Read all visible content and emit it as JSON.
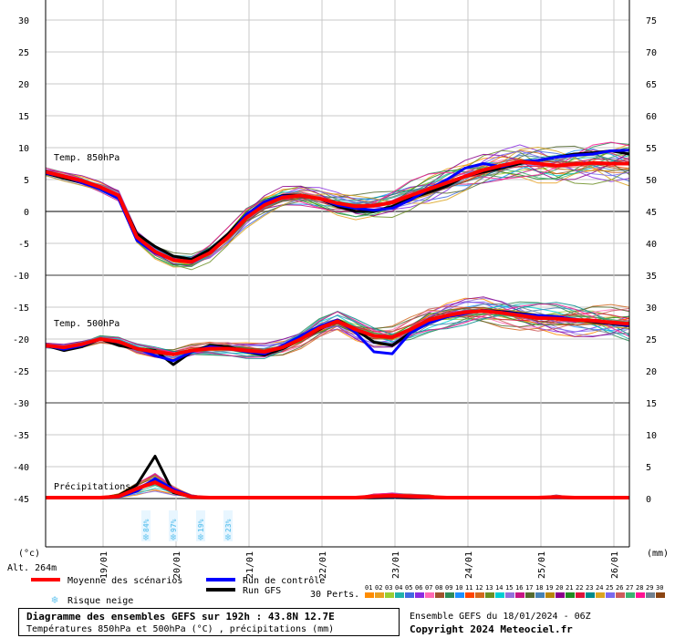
{
  "chart_data": {
    "type": "line",
    "left_axis": {
      "unit": "(°c)",
      "ticks": [
        30,
        25,
        20,
        15,
        10,
        5,
        0,
        -5,
        -10,
        -15,
        -20,
        -25,
        -30,
        -35,
        -40,
        -45
      ]
    },
    "right_axis": {
      "unit": "(mm)",
      "ticks": [
        75,
        70,
        65,
        60,
        55,
        50,
        45,
        40,
        35,
        30,
        25,
        20,
        15,
        10,
        5,
        0
      ]
    },
    "x_ticks": [
      "19/01",
      "20/01",
      "21/01",
      "22/01",
      "23/01",
      "24/01",
      "25/01",
      "26/01"
    ],
    "altitude": "Alt. 264m",
    "panels": [
      {
        "label": "Temp. 850hPa",
        "level": "850hPa"
      },
      {
        "label": "Temp. 500hPa",
        "level": "500hPa"
      },
      {
        "label": "Précipitations",
        "level": "precip"
      }
    ],
    "time_hours": [
      0,
      6,
      12,
      18,
      24,
      30,
      36,
      42,
      48,
      54,
      60,
      66,
      72,
      78,
      84,
      90,
      96,
      102,
      108,
      114,
      120,
      126,
      132,
      138,
      144,
      150,
      156,
      162,
      168,
      174,
      180,
      186,
      192
    ],
    "series": [
      {
        "name": "Moyenne des scénarios",
        "color": "#ff0000",
        "t850": [
          6.2,
          5.5,
          4.8,
          3.8,
          2.5,
          -4.0,
          -6.3,
          -7.6,
          -7.9,
          -6.5,
          -4.0,
          -1.0,
          1.0,
          2.2,
          2.5,
          2.0,
          1.3,
          0.8,
          0.9,
          1.4,
          2.5,
          3.5,
          4.5,
          5.5,
          6.5,
          7.2,
          7.8,
          7.5,
          7.2,
          7.4,
          7.6,
          7.5,
          7.5
        ],
        "t500": [
          -21.0,
          -21.3,
          -20.8,
          -20.0,
          -20.4,
          -21.5,
          -22.0,
          -22.4,
          -21.8,
          -21.5,
          -21.5,
          -21.8,
          -22.0,
          -21.3,
          -20.0,
          -18.3,
          -17.2,
          -18.5,
          -19.5,
          -19.7,
          -18.5,
          -17.0,
          -16.3,
          -15.8,
          -15.6,
          -15.9,
          -16.3,
          -16.7,
          -16.8,
          -17.0,
          -17.1,
          -17.4,
          -17.6
        ],
        "precip": [
          0,
          0,
          0,
          0,
          0.2,
          1.4,
          2.4,
          1.0,
          0.1,
          0,
          0,
          0,
          0,
          0,
          0,
          0,
          0,
          0,
          0.2,
          0.3,
          0.2,
          0.1,
          0,
          0,
          0,
          0,
          0,
          0,
          0.1,
          0,
          0,
          0,
          0
        ]
      },
      {
        "name": "Run de contrôle",
        "color": "#0000ff",
        "t850": [
          6.0,
          5.5,
          4.5,
          3.5,
          2.0,
          -4.5,
          -6.5,
          -7.5,
          -8.0,
          -6.5,
          -4.0,
          -0.5,
          1.5,
          2.4,
          2.4,
          2.0,
          1.0,
          0.5,
          0.2,
          0.5,
          1.8,
          3.5,
          5.0,
          6.8,
          7.5,
          7.0,
          7.8,
          8.0,
          8.5,
          8.8,
          9.0,
          9.5,
          9.6
        ],
        "t500": [
          -21.0,
          -21.6,
          -21.0,
          -20.0,
          -20.5,
          -21.4,
          -22.6,
          -23.4,
          -22.0,
          -21.2,
          -21.5,
          -22.0,
          -22.3,
          -21.0,
          -19.5,
          -18.0,
          -17.0,
          -19.0,
          -22.0,
          -22.3,
          -19.0,
          -17.5,
          -16.5,
          -16.0,
          -15.5,
          -15.8,
          -16.1,
          -16.3,
          -16.5,
          -16.9,
          -17.2,
          -17.5,
          -17.8
        ],
        "precip": [
          0,
          0,
          0,
          0,
          0.1,
          1.0,
          3.0,
          1.3,
          0.2,
          0,
          0,
          0,
          0,
          0,
          0,
          0,
          0,
          0,
          0.1,
          0.2,
          0.1,
          0,
          0,
          0,
          0,
          0,
          0,
          0,
          0,
          0,
          0,
          0,
          0
        ]
      },
      {
        "name": "Run GFS",
        "color": "#000000",
        "t850": [
          6.0,
          5.2,
          4.5,
          3.6,
          2.5,
          -3.5,
          -5.5,
          -7.0,
          -7.5,
          -6.0,
          -3.5,
          -0.5,
          1.5,
          2.5,
          2.6,
          2.0,
          0.8,
          0.0,
          0.0,
          0.8,
          2.0,
          3.0,
          4.0,
          5.5,
          6.2,
          6.8,
          7.5,
          8.0,
          8.5,
          9.0,
          9.2,
          9.5,
          9.0
        ],
        "t500": [
          -21.0,
          -21.8,
          -21.2,
          -20.0,
          -21.0,
          -21.5,
          -21.8,
          -24.0,
          -22.0,
          -21.0,
          -21.2,
          -22.0,
          -22.5,
          -21.5,
          -20.0,
          -18.5,
          -17.0,
          -18.5,
          -20.5,
          -21.0,
          -19.0,
          -17.5,
          -16.5,
          -15.8,
          -15.5,
          -15.7,
          -16.0,
          -16.3,
          -16.5,
          -17.0,
          -17.3,
          -17.6,
          -17.9
        ],
        "precip": [
          0,
          0,
          0,
          0,
          0.3,
          2.0,
          6.5,
          0.8,
          0.1,
          0,
          0,
          0,
          0,
          0,
          0,
          0,
          0,
          0,
          0,
          0.1,
          0,
          0,
          0,
          0,
          0,
          0,
          0,
          0,
          0,
          0,
          0,
          0,
          0
        ]
      }
    ],
    "perturbations": {
      "label": "30 Perts.",
      "count": 30,
      "ids": [
        "01",
        "02",
        "03",
        "04",
        "05",
        "06",
        "07",
        "08",
        "09",
        "10",
        "11",
        "12",
        "13",
        "14",
        "15",
        "16",
        "17",
        "18",
        "19",
        "20",
        "21",
        "22",
        "23",
        "24",
        "25",
        "26",
        "27",
        "28",
        "29",
        "30"
      ],
      "colors": [
        "#ff8c00",
        "#e8a020",
        "#9acd32",
        "#20b2aa",
        "#4169e1",
        "#8a2be2",
        "#ff69b4",
        "#a0522d",
        "#2e8b57",
        "#1e90ff",
        "#ff4500",
        "#d2691e",
        "#6b8e23",
        "#00ced1",
        "#9370db",
        "#c71585",
        "#556b2f",
        "#4682b4",
        "#b8860b",
        "#8b008b",
        "#228b22",
        "#dc143c",
        "#008b8b",
        "#daa520",
        "#7b68ee",
        "#cd5c5c",
        "#3cb371",
        "#ff1493",
        "#708090",
        "#8b4513"
      ]
    },
    "snow_risk": {
      "label": "Risque neige",
      "events": [
        {
          "t": 33,
          "pct": "84%"
        },
        {
          "t": 42,
          "pct": "97%"
        },
        {
          "t": 51,
          "pct": "19%"
        },
        {
          "t": 60,
          "pct": "23%"
        }
      ]
    }
  },
  "footer": {
    "title": "Diagramme des ensembles GEFS sur 192h : 43.8N 12.7E",
    "subtitle": "Températures 850hPa et 500hPa (°C) , précipitations (mm)",
    "ensemble_run": "Ensemble GEFS du 18/01/2024 - 06Z",
    "copyright": "Copyright 2024 Meteociel.fr"
  },
  "colors": {
    "grid": "#c8c8c8",
    "frame": "#000000",
    "snow": "#6ec8f0"
  }
}
